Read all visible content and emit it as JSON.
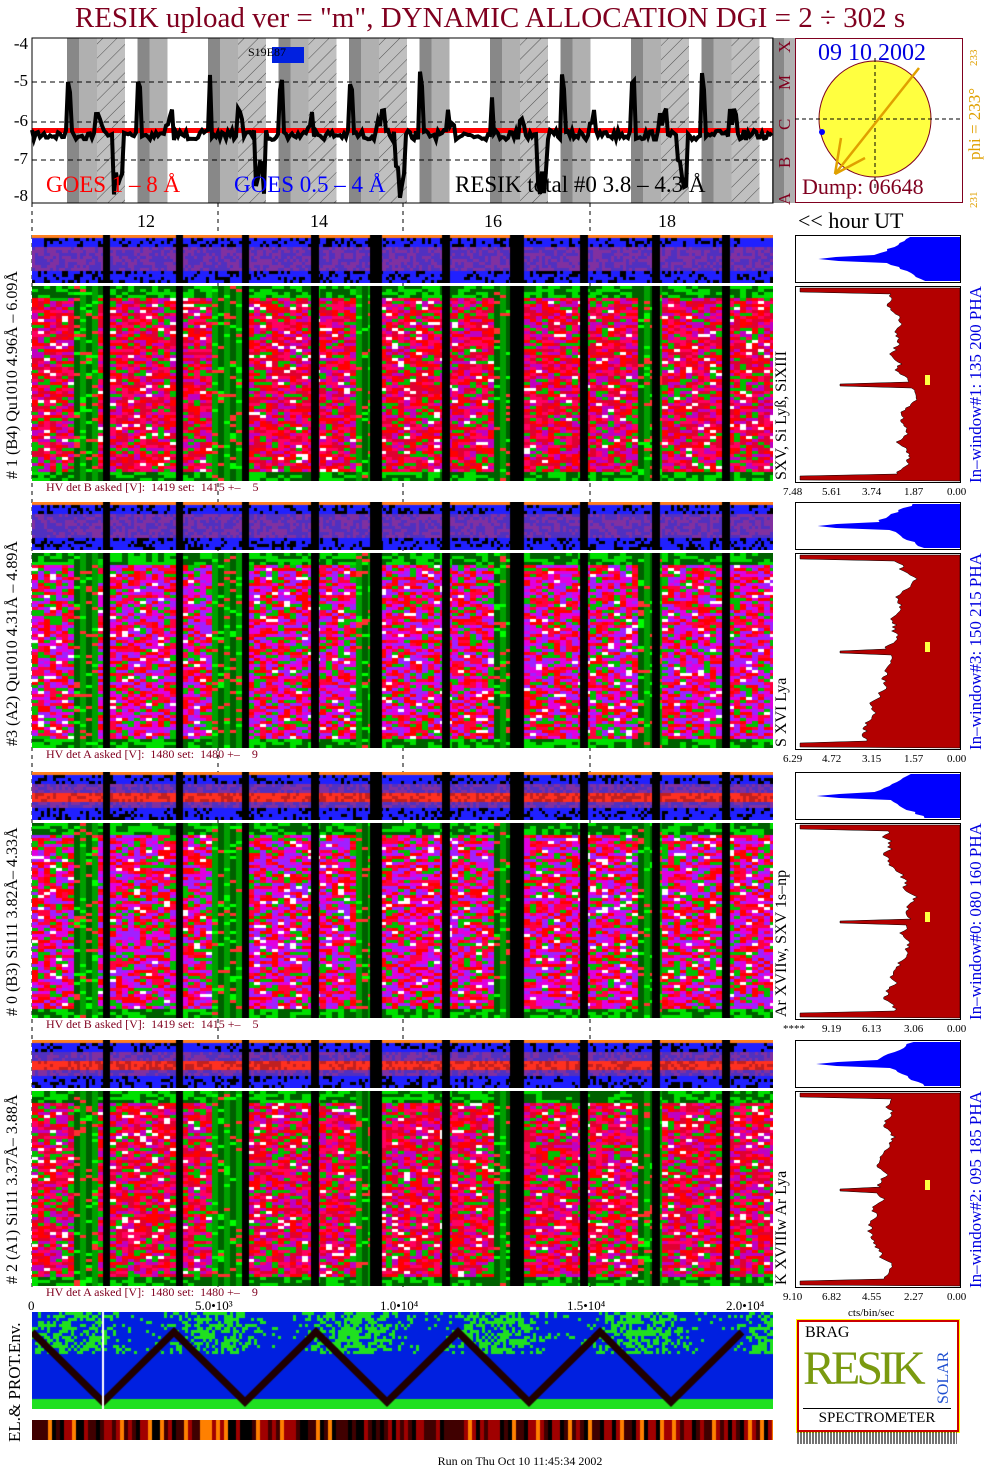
{
  "title": "RESIK upload ver = \"m\", DYNAMIC ALLOCATION  DGI =   2 ÷ 302 s",
  "goes_panel": {
    "y_ticks": [
      "-4",
      "-5",
      "-6",
      "-7",
      "-8"
    ],
    "class_letters": [
      "X",
      "M",
      "C",
      "B",
      "A"
    ],
    "legend": {
      "goes_long": "GOES 1 – 8 Å",
      "goes_short": "GOES 0.5 – 4 Å",
      "resik": "RESIK total #0  3.8 – 4.3 Å"
    },
    "marker_label": "S19E87",
    "colors": {
      "goes_long": "#ff0000",
      "goes_short": "#0000ff",
      "resik": "#000000"
    }
  },
  "sun_panel": {
    "date": "09 10 2002",
    "dump": "Dump: 06648",
    "phi": "phi = 233°",
    "phi_small_top": "233",
    "phi_small_bottom": "231"
  },
  "hour_axis": {
    "ticks": [
      "12",
      "14",
      "16",
      "18"
    ],
    "label": "<< hour UT"
  },
  "channels": [
    {
      "label": "# 1 (B4) Qu1010 4.96Å – 6.09Å",
      "lines": "SXV, Si Lyß, SiXIII",
      "hv": "HV det B asked [V]:  1419 set:  1415 +–    5",
      "window": "In–window#1:  135 200 PHA",
      "ticks": [
        "7.48",
        "5.61",
        "3.74",
        "1.87",
        "0.00"
      ],
      "style": "red"
    },
    {
      "label": "#3 (A2) Qu1010  4.31Å – 4.89Å",
      "lines": "S XVI Lya",
      "hv": "HV det A asked [V]:  1480 set:  1480 +–    9",
      "window": "In–window#3:  150 215 PHA",
      "ticks": [
        "6.29",
        "4.72",
        "3.15",
        "1.57",
        "0.00"
      ],
      "style": "magenta"
    },
    {
      "label": "# 0 (B3) Si111  3.82Å– 4.33Å",
      "lines": "Ar XVIIw,  SXV 1s–np",
      "hv": "HV det B asked [V]:  1419 set:  1415 +–    5",
      "window": "In–window#0:  080 160 PHA",
      "ticks": [
        "****",
        "9.19",
        "6.13",
        "3.06",
        "0.00"
      ],
      "style": "magenta"
    },
    {
      "label": "# 2 (A1) Si111  3.37Å–  3.88Å",
      "lines": "K XVIIIw  Ar Lya",
      "hv": "HV det A asked [V]:  1480 set:  1480 +–    9",
      "window": "In–window#2:  095 185 PHA",
      "ticks": [
        "9.10",
        "6.82",
        "4.55",
        "2.27",
        "0.00"
      ],
      "style": "red"
    }
  ],
  "hist_unit": "cts/bin/sec",
  "bottom_axis": {
    "ticks": [
      "0",
      "5.0•10³",
      "1.0•10⁴",
      "1.5•10⁴",
      "2.0•10⁴"
    ]
  },
  "env_panel": {
    "label": "EL.& PROT.Env."
  },
  "logo": {
    "text": "RESIK",
    "top": "BRAG",
    "side": "SOLAR",
    "bottom": "SPECTROMETER"
  },
  "footer": "Run on Thu Oct 10 11:45:34 2002",
  "chart_data": {
    "type": "heatmap",
    "title": "RESIK upload ver = \"m\", DYNAMIC ALLOCATION  DGI =   2 ÷ 302 s",
    "goes_ylim": [
      -8,
      -4
    ],
    "goes_y_ticks": [
      -4,
      -5,
      -6,
      -7,
      -8
    ],
    "x_hour_ticks": [
      12,
      14,
      16,
      18
    ],
    "x_hour_label": "<< hour UT",
    "x_seconds_ticks": [
      0,
      5000,
      10000,
      15000,
      20000
    ],
    "goes_long_level": -6.2,
    "grid": true,
    "series": [
      {
        "name": "GOES 1 – 8 Å"
      },
      {
        "name": "GOES 0.5 – 4 Å"
      },
      {
        "name": "RESIK total #0  3.8 – 4.3 Å"
      }
    ]
  }
}
